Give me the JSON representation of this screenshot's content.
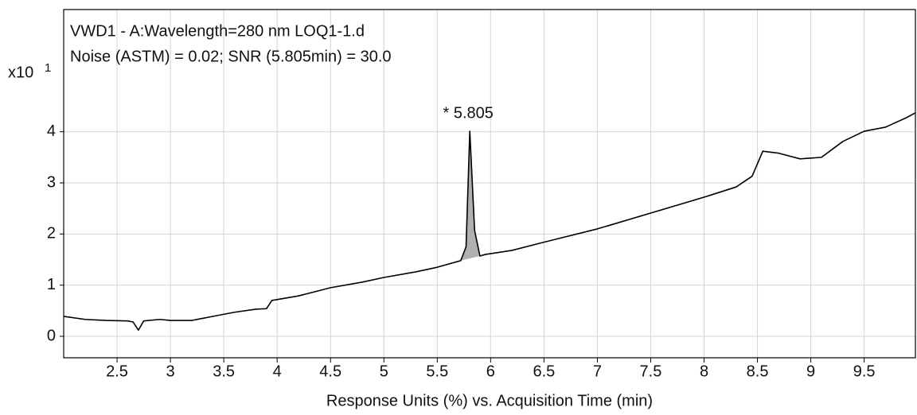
{
  "chart_data": {
    "type": "line",
    "title": "VWD1 - A:Wavelength=280 nm LOQ1-1.d",
    "subtitle": "Noise (ASTM) = 0.02; SNR (5.805min) = 30.0",
    "x_label": "Response Units (%) vs. Acquisition Time (min)",
    "y_multiplier": "x10",
    "y_multiplier_exponent": "1",
    "peak_annotation": "* 5.805",
    "xlim": [
      2,
      9.98
    ],
    "ylim": [
      -0.42,
      6.39
    ],
    "xticks": [
      2.5,
      3,
      3.5,
      4,
      4.5,
      5,
      5.5,
      6,
      6.5,
      7,
      7.5,
      8,
      8.5,
      9,
      9.5
    ],
    "yticks": [
      0,
      1,
      2,
      3,
      4
    ],
    "grid": true,
    "shaded_xlim": [
      5.72,
      5.9
    ],
    "shade_color": "#b0b0b0",
    "series": [
      {
        "name": "VWD1 - A",
        "color": "#000000",
        "x": [
          2.0,
          2.2,
          2.4,
          2.6,
          2.65,
          2.7,
          2.75,
          2.9,
          3.0,
          3.2,
          3.4,
          3.6,
          3.8,
          3.9,
          3.95,
          4.2,
          4.5,
          4.8,
          5.0,
          5.3,
          5.5,
          5.72,
          5.77,
          5.805,
          5.85,
          5.9,
          5.95,
          6.2,
          6.5,
          7.0,
          7.5,
          8.0,
          8.3,
          8.45,
          8.55,
          8.7,
          8.9,
          9.1,
          9.3,
          9.5,
          9.7,
          9.9,
          9.98
        ],
        "values": [
          0.39,
          0.33,
          0.31,
          0.3,
          0.28,
          0.12,
          0.3,
          0.33,
          0.31,
          0.31,
          0.39,
          0.47,
          0.53,
          0.54,
          0.7,
          0.79,
          0.95,
          1.06,
          1.15,
          1.26,
          1.35,
          1.48,
          1.75,
          4.01,
          2.07,
          1.57,
          1.6,
          1.68,
          1.84,
          2.1,
          2.41,
          2.72,
          2.92,
          3.13,
          3.62,
          3.58,
          3.47,
          3.5,
          3.81,
          4.01,
          4.09,
          4.28,
          4.37
        ]
      }
    ]
  }
}
